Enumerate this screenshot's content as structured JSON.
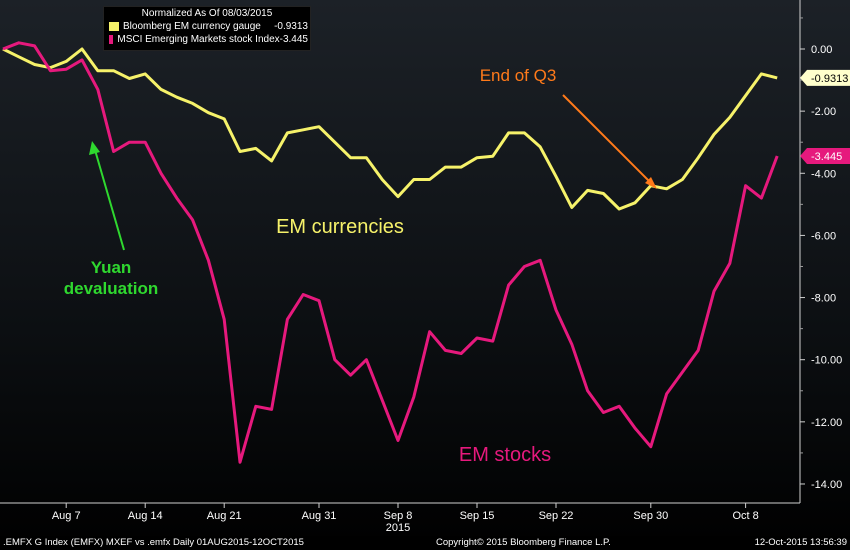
{
  "chart_data": {
    "type": "line",
    "legend_title": "Normalized As Of 08/03/2015",
    "x_tick_labels": [
      {
        "date": "2015-08-07",
        "label": "Aug 7"
      },
      {
        "date": "2015-08-14",
        "label": "Aug 14"
      },
      {
        "date": "2015-08-21",
        "label": "Aug 21"
      },
      {
        "date": "2015-08-31",
        "label": "Aug 31"
      },
      {
        "date": "2015-09-08",
        "label": "Sep 8"
      },
      {
        "date": "2015-09-15",
        "label": "Sep 15"
      },
      {
        "date": "2015-09-22",
        "label": "Sep 22"
      },
      {
        "date": "2015-09-30",
        "label": "Sep 30"
      },
      {
        "date": "2015-10-08",
        "label": "Oct 8"
      }
    ],
    "x_year_label": "2015",
    "y_ticks": [
      "0.00",
      "-2.00",
      "-4.00",
      "-6.00",
      "-8.00",
      "-10.00",
      "-12.00",
      "-14.00"
    ],
    "ylim": [
      -14.8,
      1.5
    ],
    "series": [
      {
        "name": "Bloomberg EM currency gauge",
        "legend_value": "-0.9313",
        "last_label": "-0.9313",
        "color": "#f6f26a",
        "inline_label": "EM currencies",
        "points": [
          [
            "2015-08-03",
            0.0
          ],
          [
            "2015-08-04",
            -0.25
          ],
          [
            "2015-08-05",
            -0.5
          ],
          [
            "2015-08-06",
            -0.6
          ],
          [
            "2015-08-07",
            -0.4
          ],
          [
            "2015-08-10",
            0.0
          ],
          [
            "2015-08-11",
            -0.7
          ],
          [
            "2015-08-12",
            -0.7
          ],
          [
            "2015-08-13",
            -0.95
          ],
          [
            "2015-08-14",
            -0.8
          ],
          [
            "2015-08-17",
            -1.3
          ],
          [
            "2015-08-18",
            -1.55
          ],
          [
            "2015-08-19",
            -1.75
          ],
          [
            "2015-08-20",
            -2.05
          ],
          [
            "2015-08-21",
            -2.25
          ],
          [
            "2015-08-24",
            -3.3
          ],
          [
            "2015-08-25",
            -3.2
          ],
          [
            "2015-08-26",
            -3.6
          ],
          [
            "2015-08-27",
            -2.7
          ],
          [
            "2015-08-28",
            -2.6
          ],
          [
            "2015-08-31",
            -2.5
          ],
          [
            "2015-09-01",
            -3.0
          ],
          [
            "2015-09-02",
            -3.5
          ],
          [
            "2015-09-03",
            -3.5
          ],
          [
            "2015-09-04",
            -4.2
          ],
          [
            "2015-09-08",
            -4.75
          ],
          [
            "2015-09-09",
            -4.2
          ],
          [
            "2015-09-10",
            -4.2
          ],
          [
            "2015-09-11",
            -3.8
          ],
          [
            "2015-09-14",
            -3.8
          ],
          [
            "2015-09-15",
            -3.5
          ],
          [
            "2015-09-16",
            -3.45
          ],
          [
            "2015-09-17",
            -2.7
          ],
          [
            "2015-09-18",
            -2.7
          ],
          [
            "2015-09-21",
            -3.15
          ],
          [
            "2015-09-22",
            -4.1
          ],
          [
            "2015-09-23",
            -5.1
          ],
          [
            "2015-09-24",
            -4.55
          ],
          [
            "2015-09-25",
            -4.65
          ],
          [
            "2015-09-28",
            -5.15
          ],
          [
            "2015-09-29",
            -4.95
          ],
          [
            "2015-09-30",
            -4.4
          ],
          [
            "2015-10-01",
            -4.5
          ],
          [
            "2015-10-02",
            -4.2
          ],
          [
            "2015-10-05",
            -3.5
          ],
          [
            "2015-10-06",
            -2.75
          ],
          [
            "2015-10-07",
            -2.2
          ],
          [
            "2015-10-08",
            -1.5
          ],
          [
            "2015-10-09",
            -0.8
          ],
          [
            "2015-10-12",
            -0.93
          ]
        ]
      },
      {
        "name": "MSCI Emerging Markets stock Index",
        "legend_value": "-3.445",
        "last_label": "-3.445",
        "color": "#e6197d",
        "inline_label": "EM stocks",
        "points": [
          [
            "2015-08-03",
            0.0
          ],
          [
            "2015-08-04",
            0.2
          ],
          [
            "2015-08-05",
            0.1
          ],
          [
            "2015-08-06",
            -0.7
          ],
          [
            "2015-08-07",
            -0.65
          ],
          [
            "2015-08-10",
            -0.35
          ],
          [
            "2015-08-11",
            -1.3
          ],
          [
            "2015-08-12",
            -3.3
          ],
          [
            "2015-08-13",
            -3.0
          ],
          [
            "2015-08-14",
            -3.0
          ],
          [
            "2015-08-17",
            -4.0
          ],
          [
            "2015-08-18",
            -4.8
          ],
          [
            "2015-08-19",
            -5.5
          ],
          [
            "2015-08-20",
            -6.8
          ],
          [
            "2015-08-21",
            -8.7
          ],
          [
            "2015-08-24",
            -13.3
          ],
          [
            "2015-08-25",
            -11.5
          ],
          [
            "2015-08-26",
            -11.6
          ],
          [
            "2015-08-27",
            -8.7
          ],
          [
            "2015-08-28",
            -7.9
          ],
          [
            "2015-08-31",
            -8.1
          ],
          [
            "2015-09-01",
            -10.0
          ],
          [
            "2015-09-02",
            -10.5
          ],
          [
            "2015-09-03",
            -10.0
          ],
          [
            "2015-09-04",
            -11.3
          ],
          [
            "2015-09-08",
            -12.6
          ],
          [
            "2015-09-09",
            -11.2
          ],
          [
            "2015-09-10",
            -9.1
          ],
          [
            "2015-09-11",
            -9.7
          ],
          [
            "2015-09-14",
            -9.8
          ],
          [
            "2015-09-15",
            -9.3
          ],
          [
            "2015-09-16",
            -9.4
          ],
          [
            "2015-09-17",
            -7.6
          ],
          [
            "2015-09-18",
            -7.0
          ],
          [
            "2015-09-21",
            -6.8
          ],
          [
            "2015-09-22",
            -8.4
          ],
          [
            "2015-09-23",
            -9.5
          ],
          [
            "2015-09-24",
            -11.0
          ],
          [
            "2015-09-25",
            -11.7
          ],
          [
            "2015-09-28",
            -11.5
          ],
          [
            "2015-09-29",
            -12.2
          ],
          [
            "2015-09-30",
            -12.8
          ],
          [
            "2015-10-01",
            -11.1
          ],
          [
            "2015-10-02",
            -10.4
          ],
          [
            "2015-10-05",
            -9.7
          ],
          [
            "2015-10-06",
            -7.8
          ],
          [
            "2015-10-07",
            -6.9
          ],
          [
            "2015-10-08",
            -4.4
          ],
          [
            "2015-10-09",
            -4.8
          ],
          [
            "2015-10-12",
            -3.445
          ]
        ]
      }
    ],
    "annotations": [
      {
        "text": "Yuan\ndevaluation",
        "color": "#2fd82f",
        "arrow_to_date": "2015-08-11"
      },
      {
        "text": "End of Q3",
        "color": "#ff7a1a",
        "arrow_to_date": "2015-09-30"
      }
    ]
  },
  "footer": {
    "left": ".EMFX G Index (EMFX) MXEF vs .emfx  Daily 01AUG2015-12OCT2015",
    "center": "Copyright© 2015 Bloomberg Finance L.P.",
    "right": "12-Oct-2015 13:56:39"
  }
}
